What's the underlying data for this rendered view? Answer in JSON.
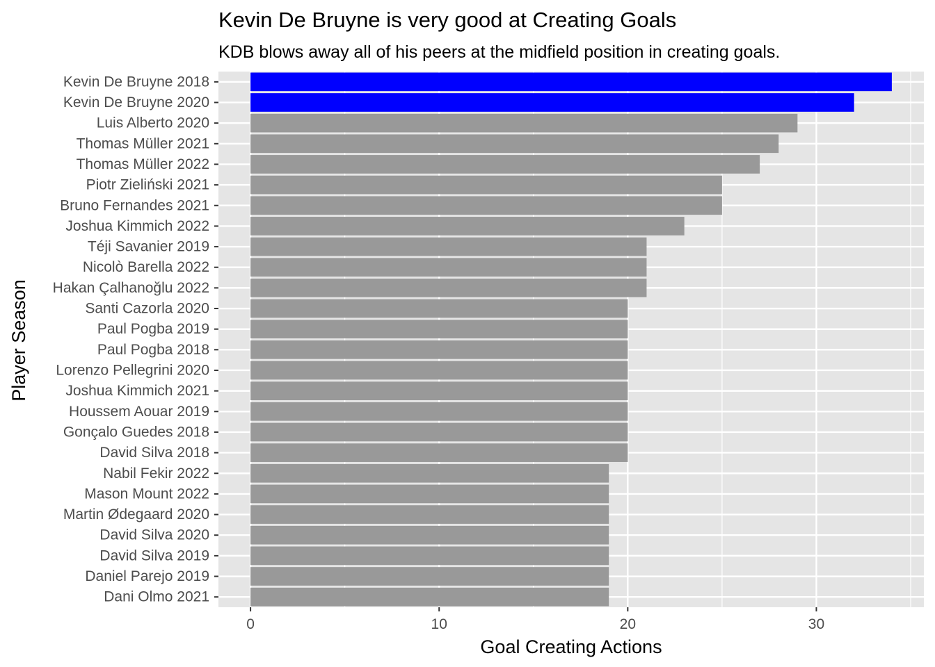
{
  "chart_data": {
    "type": "bar",
    "orientation": "horizontal",
    "title": "Kevin De Bruyne is very good at Creating Goals",
    "subtitle": "KDB blows away all of his peers at the midfield position in creating goals.",
    "xlabel": "Goal Creating Actions",
    "ylabel": "Player Season",
    "xlim": [
      -1.7,
      35.7
    ],
    "xticks": [
      0,
      10,
      20,
      30
    ],
    "grid": true,
    "legend": "none",
    "colors": {
      "highlight": "#0000ff",
      "default": "#999999",
      "panel": "#e5e5e5",
      "grid": "#ffffff"
    },
    "categories": [
      "Kevin De Bruyne 2018",
      "Kevin De Bruyne 2020",
      "Luis Alberto 2020",
      "Thomas Müller 2021",
      "Thomas Müller 2022",
      "Piotr Zieliński 2021",
      "Bruno Fernandes 2021",
      "Joshua Kimmich 2022",
      "Téji Savanier 2019",
      "Nicolò Barella 2022",
      "Hakan Çalhanoğlu 2022",
      "Santi Cazorla 2020",
      "Paul Pogba 2019",
      "Paul Pogba 2018",
      "Lorenzo Pellegrini 2020",
      "Joshua Kimmich 2021",
      "Houssem Aouar 2019",
      "Gonçalo Guedes 2018",
      "David Silva 2018",
      "Nabil Fekir 2022",
      "Mason Mount 2022",
      "Martin Ødegaard 2020",
      "David Silva 2020",
      "David Silva 2019",
      "Daniel Parejo 2019",
      "Dani Olmo 2021"
    ],
    "values": [
      34,
      32,
      29,
      28,
      27,
      25,
      25,
      23,
      21,
      21,
      21,
      20,
      20,
      20,
      20,
      20,
      20,
      20,
      20,
      19,
      19,
      19,
      19,
      19,
      19,
      19
    ],
    "highlighted": [
      true,
      true,
      false,
      false,
      false,
      false,
      false,
      false,
      false,
      false,
      false,
      false,
      false,
      false,
      false,
      false,
      false,
      false,
      false,
      false,
      false,
      false,
      false,
      false,
      false,
      false
    ]
  }
}
